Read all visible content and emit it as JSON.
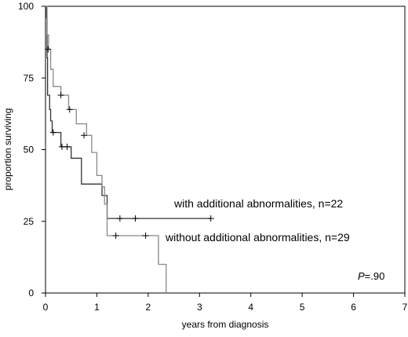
{
  "chart_data": {
    "type": "line",
    "title": "",
    "xlabel": "years from diagnosis",
    "ylabel": "proportion surviving",
    "xlim": [
      0,
      7
    ],
    "ylim": [
      0,
      100
    ],
    "x_ticks": [
      "0",
      "1",
      "2",
      "3",
      "4",
      "5",
      "6",
      "7"
    ],
    "y_ticks": [
      "0",
      "25",
      "50",
      "75",
      "100"
    ],
    "grid": false,
    "series": [
      {
        "name": "with additional abnormalities, n=22",
        "color": "#333333",
        "step": [
          [
            0,
            100
          ],
          [
            0.02,
            96
          ],
          [
            0.03,
            82
          ],
          [
            0.04,
            69
          ],
          [
            0.08,
            64
          ],
          [
            0.1,
            60
          ],
          [
            0.13,
            56
          ],
          [
            0.3,
            51
          ],
          [
            0.5,
            47
          ],
          [
            0.7,
            38
          ],
          [
            1.1,
            34
          ],
          [
            1.2,
            26
          ],
          [
            3.22,
            26
          ]
        ],
        "censor": [
          [
            0.15,
            56
          ],
          [
            0.32,
            51
          ],
          [
            0.42,
            51
          ],
          [
            1.45,
            26
          ],
          [
            1.75,
            26
          ],
          [
            3.22,
            26
          ]
        ]
      },
      {
        "name": "without additional abnormalities, n=29",
        "color": "#888888",
        "step": [
          [
            0,
            100
          ],
          [
            0.03,
            90
          ],
          [
            0.06,
            85
          ],
          [
            0.1,
            78
          ],
          [
            0.15,
            72
          ],
          [
            0.3,
            69
          ],
          [
            0.45,
            64
          ],
          [
            0.6,
            59
          ],
          [
            0.8,
            55
          ],
          [
            0.9,
            49
          ],
          [
            1.0,
            41
          ],
          [
            1.1,
            37
          ],
          [
            1.15,
            31
          ],
          [
            1.2,
            20
          ],
          [
            2.2,
            10
          ],
          [
            2.35,
            0
          ]
        ],
        "censor": [
          [
            0.05,
            85
          ],
          [
            0.3,
            69
          ],
          [
            0.47,
            64
          ],
          [
            0.75,
            55
          ],
          [
            1.37,
            20
          ],
          [
            1.95,
            20
          ]
        ]
      }
    ],
    "annotations": {
      "with_label": "with additional abnormalities, n=22",
      "without_label": "without additional abnormalities, n=29",
      "p_label": "P",
      "p_value": "=.90"
    }
  }
}
